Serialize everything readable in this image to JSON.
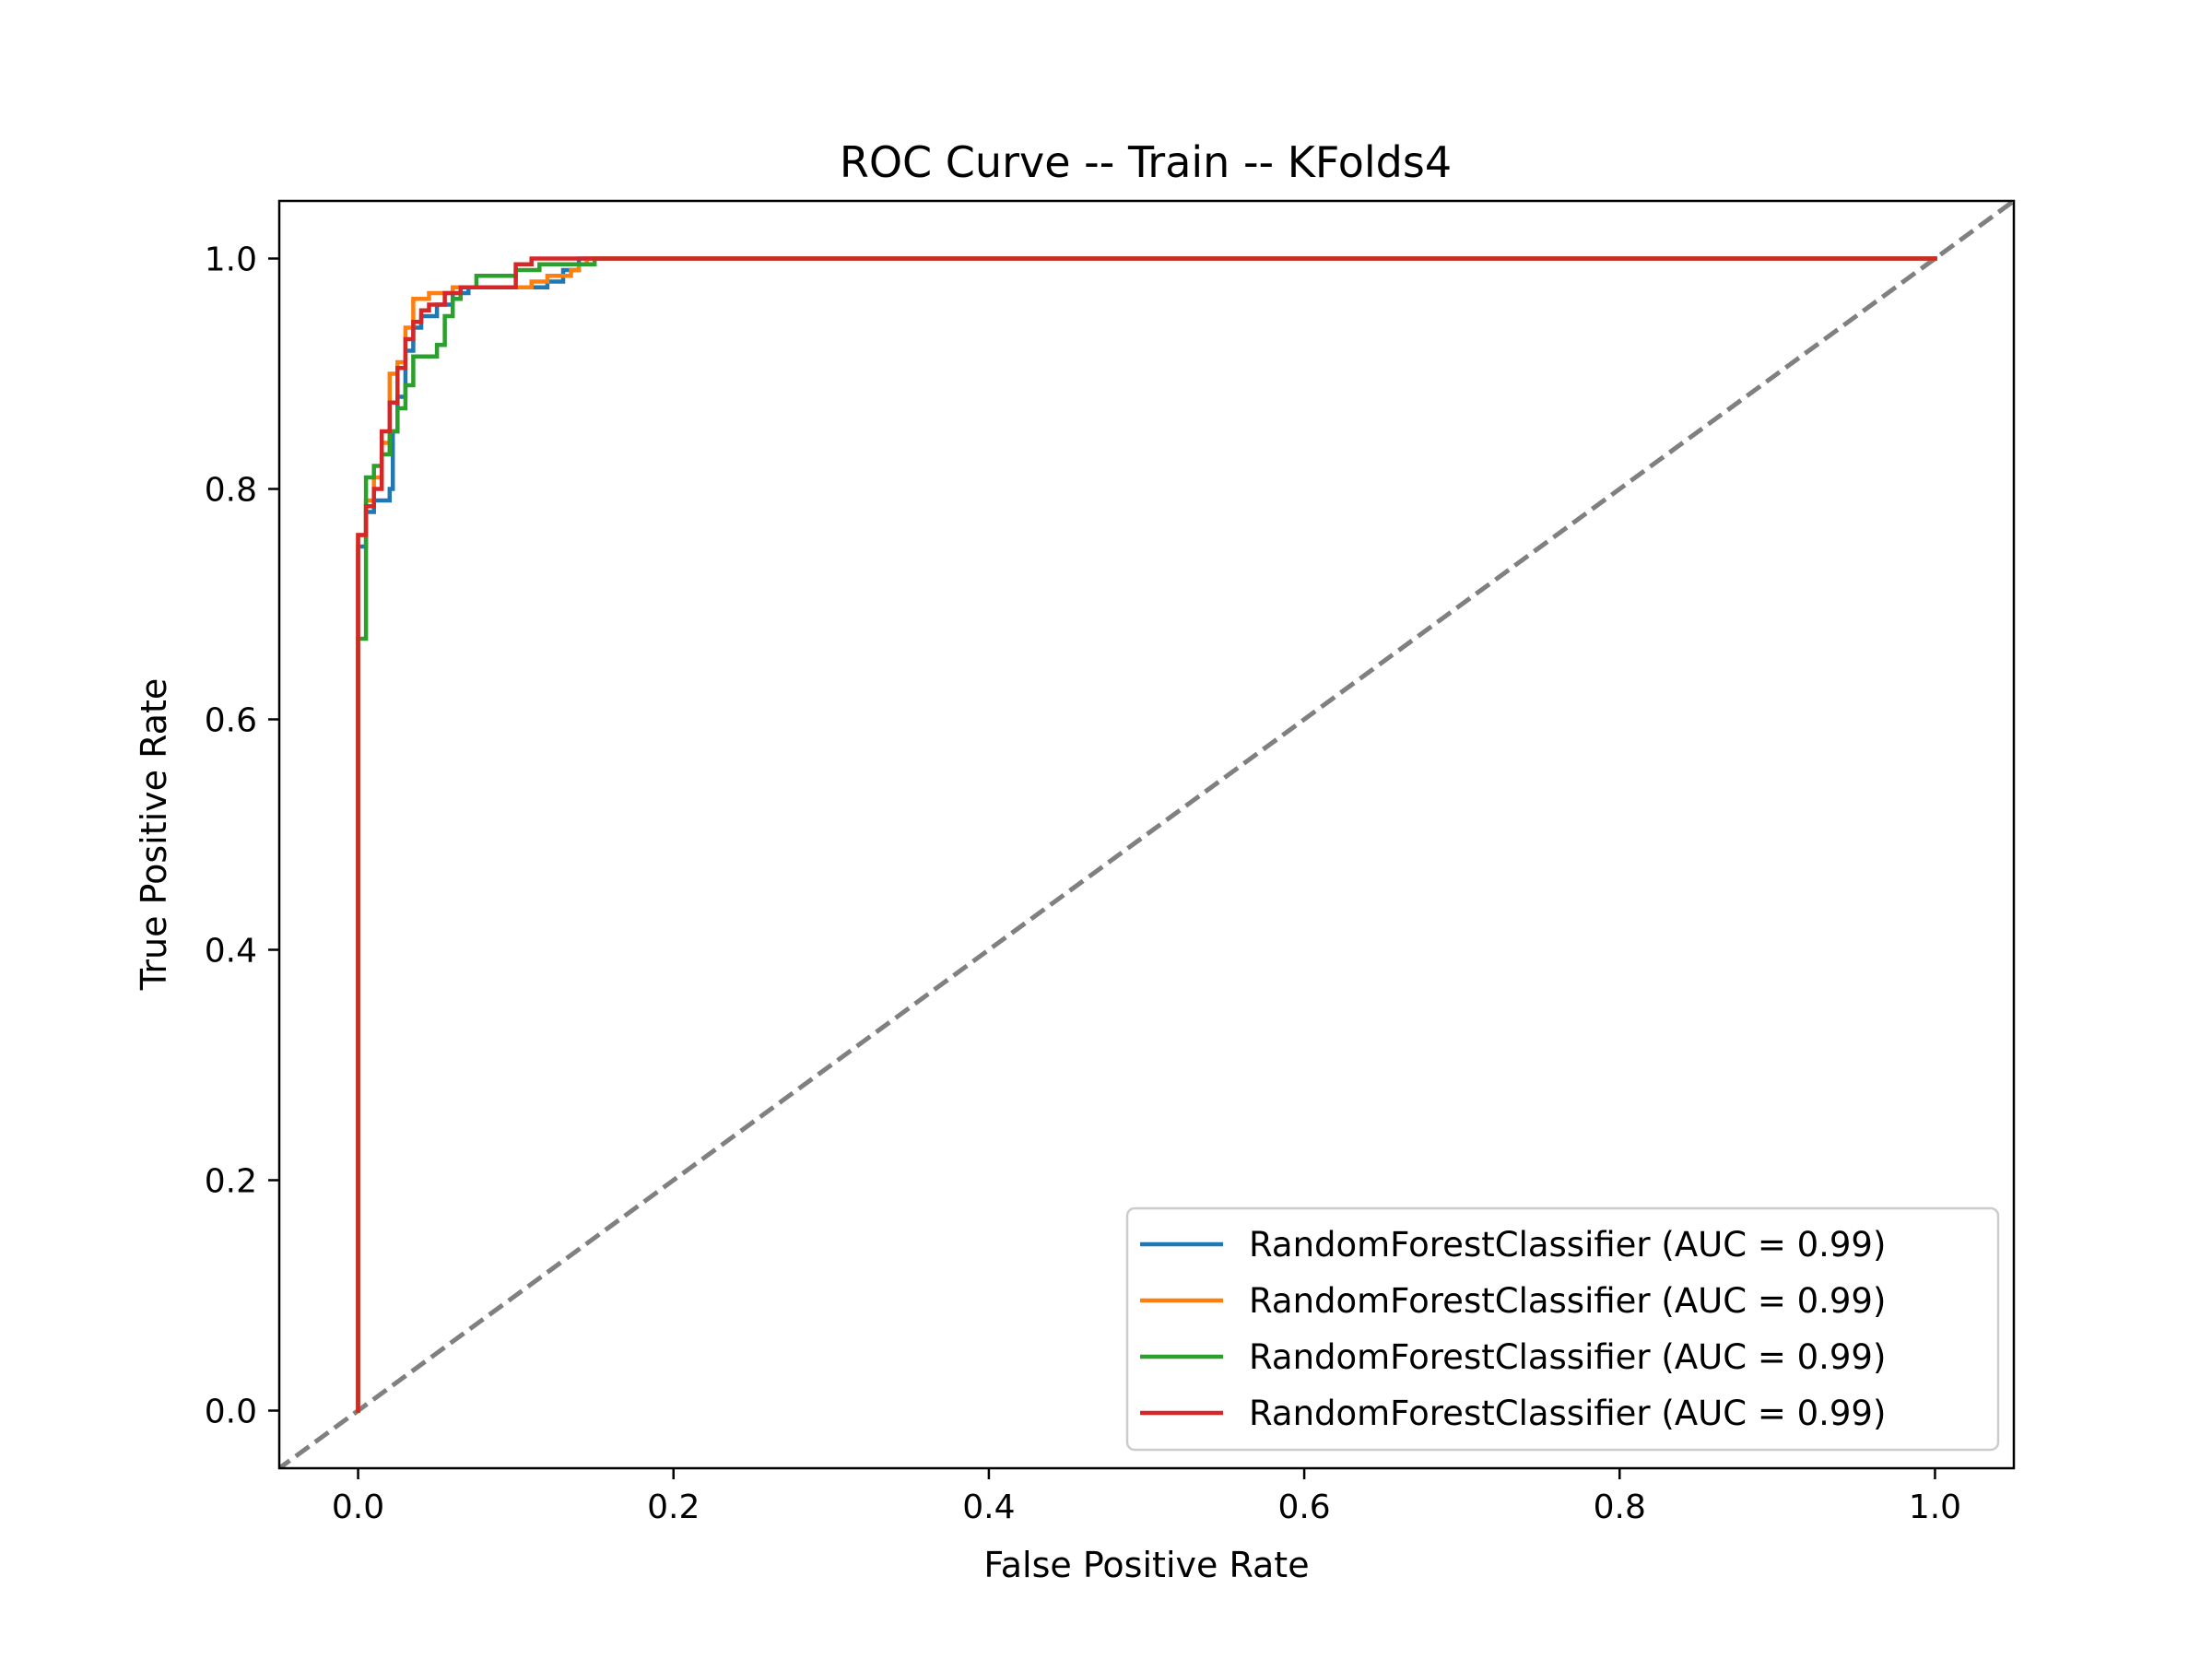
{
  "chart_data": {
    "type": "line",
    "title": "ROC Curve -- Train -- KFolds4",
    "xlabel": "False Positive Rate",
    "ylabel": "True Positive Rate",
    "xlim": [
      -0.05,
      1.05
    ],
    "ylim": [
      -0.05,
      1.05
    ],
    "xticks": [
      0.0,
      0.2,
      0.4,
      0.6,
      0.8,
      1.0
    ],
    "xtick_labels": [
      "0.0",
      "0.2",
      "0.4",
      "0.6",
      "0.8",
      "1.0"
    ],
    "yticks": [
      0.0,
      0.2,
      0.4,
      0.6,
      0.8,
      1.0
    ],
    "ytick_labels": [
      "0.0",
      "0.2",
      "0.4",
      "0.6",
      "0.8",
      "1.0"
    ],
    "grid": false,
    "legend_position": "lower-right",
    "reference_line": {
      "x": [
        0,
        1
      ],
      "y": [
        0,
        1
      ],
      "color": "#808080",
      "style": "dashed"
    },
    "series": [
      {
        "name": "RandomForestClassifier (AUC = 0.99)",
        "color": "#1f77b4",
        "x": [
          0,
          0,
          0.005,
          0.005,
          0.01,
          0.01,
          0.02,
          0.02,
          0.022,
          0.022,
          0.025,
          0.025,
          0.03,
          0.03,
          0.035,
          0.035,
          0.04,
          0.04,
          0.05,
          0.05,
          0.06,
          0.06,
          0.07,
          0.07,
          0.12,
          0.12,
          0.13,
          0.13,
          0.14,
          0.14,
          1.0
        ],
        "y": [
          0,
          0.75,
          0.75,
          0.78,
          0.78,
          0.79,
          0.79,
          0.8,
          0.8,
          0.85,
          0.85,
          0.88,
          0.88,
          0.92,
          0.92,
          0.94,
          0.94,
          0.95,
          0.95,
          0.96,
          0.96,
          0.97,
          0.97,
          0.975,
          0.975,
          0.98,
          0.98,
          0.99,
          0.99,
          1.0,
          1.0
        ]
      },
      {
        "name": "RandomForestClassifier (AUC = 0.99)",
        "color": "#ff7f0e",
        "x": [
          0,
          0,
          0.005,
          0.005,
          0.01,
          0.01,
          0.015,
          0.015,
          0.02,
          0.02,
          0.025,
          0.025,
          0.03,
          0.03,
          0.035,
          0.035,
          0.045,
          0.045,
          0.06,
          0.06,
          0.11,
          0.11,
          0.12,
          0.12,
          0.135,
          0.135,
          0.14,
          0.14,
          0.145,
          0.145,
          1.0
        ],
        "y": [
          0,
          0.76,
          0.76,
          0.79,
          0.79,
          0.81,
          0.81,
          0.84,
          0.84,
          0.9,
          0.9,
          0.91,
          0.91,
          0.94,
          0.94,
          0.965,
          0.965,
          0.97,
          0.97,
          0.975,
          0.975,
          0.98,
          0.98,
          0.985,
          0.985,
          0.99,
          0.99,
          0.995,
          0.995,
          1.0,
          1.0
        ]
      },
      {
        "name": "RandomForestClassifier (AUC = 0.99)",
        "color": "#2ca02c",
        "x": [
          0,
          0,
          0.005,
          0.005,
          0.01,
          0.01,
          0.015,
          0.015,
          0.02,
          0.02,
          0.025,
          0.025,
          0.03,
          0.03,
          0.035,
          0.035,
          0.05,
          0.05,
          0.055,
          0.055,
          0.06,
          0.06,
          0.065,
          0.065,
          0.075,
          0.075,
          0.1,
          0.1,
          0.115,
          0.115,
          0.15,
          0.15,
          1.0
        ],
        "y": [
          0,
          0.67,
          0.67,
          0.81,
          0.81,
          0.82,
          0.82,
          0.83,
          0.83,
          0.85,
          0.85,
          0.87,
          0.87,
          0.89,
          0.89,
          0.915,
          0.915,
          0.925,
          0.925,
          0.95,
          0.95,
          0.965,
          0.965,
          0.975,
          0.975,
          0.985,
          0.985,
          0.99,
          0.99,
          0.995,
          0.995,
          1.0,
          1.0
        ]
      },
      {
        "name": "RandomForestClassifier (AUC = 0.99)",
        "color": "#d62728",
        "x": [
          0,
          0,
          0.005,
          0.005,
          0.01,
          0.01,
          0.015,
          0.015,
          0.02,
          0.02,
          0.025,
          0.025,
          0.03,
          0.03,
          0.035,
          0.035,
          0.04,
          0.04,
          0.045,
          0.045,
          0.055,
          0.055,
          0.065,
          0.065,
          0.1,
          0.1,
          0.11,
          0.11,
          1.0
        ],
        "y": [
          0,
          0.76,
          0.76,
          0.785,
          0.785,
          0.8,
          0.8,
          0.85,
          0.85,
          0.875,
          0.875,
          0.905,
          0.905,
          0.93,
          0.93,
          0.945,
          0.945,
          0.955,
          0.955,
          0.96,
          0.96,
          0.97,
          0.97,
          0.975,
          0.975,
          0.995,
          0.995,
          1.0,
          1.0
        ]
      }
    ]
  }
}
